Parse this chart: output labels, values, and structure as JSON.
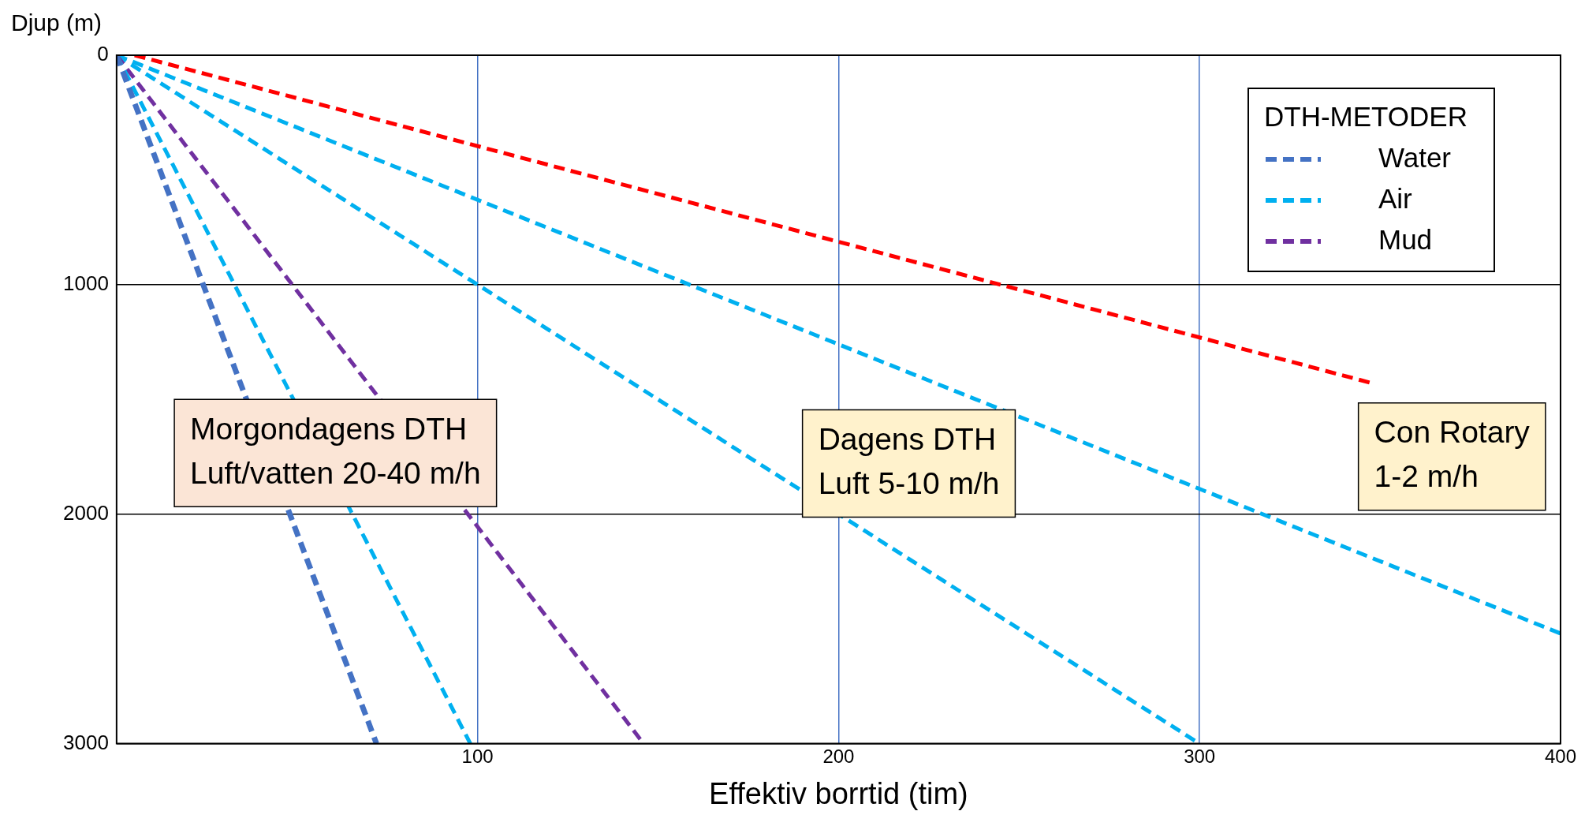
{
  "chart_data": {
    "type": "line",
    "xlabel": "Effektiv borrtid (tim)",
    "ylabel": "Djup (m)",
    "legend_title": "DTH-METODER",
    "legend": "top right",
    "line_style": "dashed",
    "marker": "none",
    "grid": true,
    "xlim": [
      0,
      400
    ],
    "xticks": [
      {
        "value": 0,
        "label": null
      },
      100,
      200,
      300,
      400
    ],
    "ylim": [
      3000,
      0
    ],
    "yticks": [
      0,
      1000,
      2000,
      3000
    ],
    "series": [
      {
        "name": "Water",
        "color": "#4472c4",
        "x": [
          0,
          72
        ],
        "values": [
          0,
          3000
        ]
      },
      {
        "name": "Air",
        "color": "#00b0f0",
        "x": [
          0,
          98
        ],
        "values": [
          0,
          3000
        ]
      },
      {
        "name": "Mud",
        "color": "#7030a0",
        "x": [
          0,
          146
        ],
        "values": [
          0,
          3000
        ]
      },
      {
        "color": "#00b0f0",
        "x": [
          0,
          300
        ],
        "values": [
          0,
          3000
        ]
      },
      {
        "color": "#00b0f0",
        "x": [
          0,
          400
        ],
        "values": [
          0,
          2520
        ]
      },
      {
        "color": "#ff0000",
        "x": [
          5,
          348
        ],
        "values": [
          0,
          1430
        ]
      }
    ],
    "annotations": [
      "Morgondagens DTH\nLuft/vatten 20-40 m/h",
      "Dagens DTH\nLuft 5-10 m/h",
      "Con Rotary\n1-2 m/h"
    ]
  }
}
